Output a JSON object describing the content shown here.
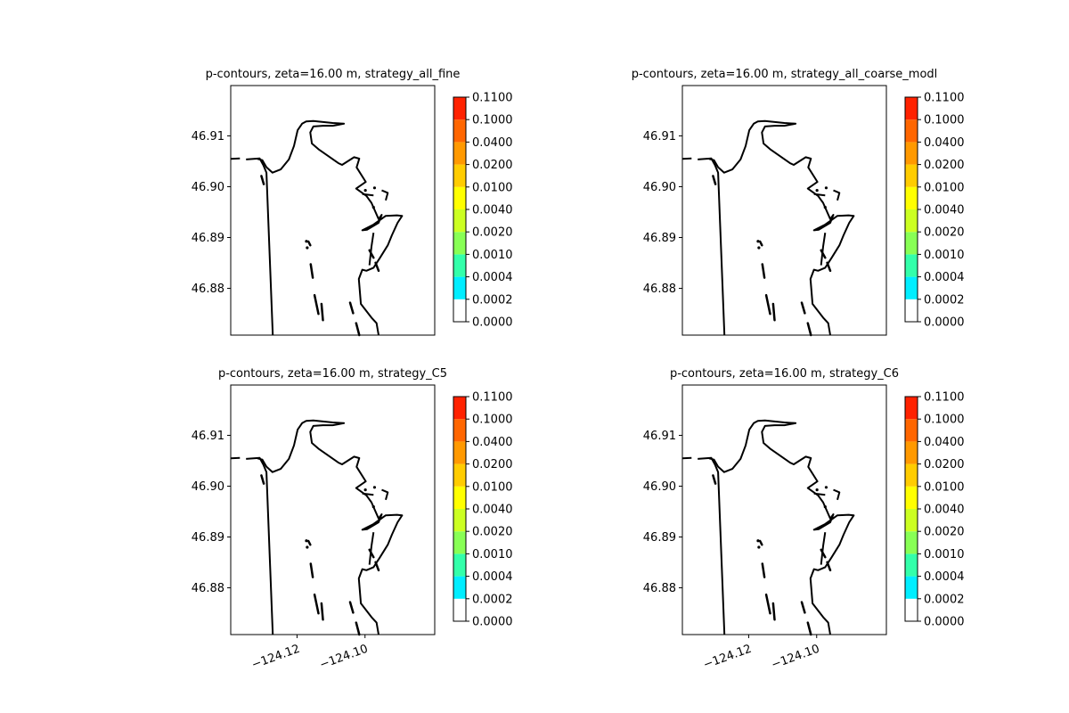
{
  "chart_data": {
    "type": "contour",
    "panels": [
      {
        "title": "p-contours, zeta=16.00 m, strategy_all_fine"
      },
      {
        "title": "p-contours, zeta=16.00 m, strategy_all_coarse_modl"
      },
      {
        "title": "p-contours, zeta=16.00 m, strategy_C5"
      },
      {
        "title": "p-contours, zeta=16.00 m, strategy_C6"
      }
    ],
    "yticks": [
      "46.91",
      "46.90",
      "46.89",
      "46.88"
    ],
    "ytick_values": [
      46.91,
      46.9,
      46.89,
      46.88
    ],
    "xticks": [
      "−124.12",
      "−124.10"
    ],
    "xtick_values": [
      -124.12,
      -124.1
    ],
    "xtick_rotation_deg": 20,
    "ylim": [
      46.8708,
      46.9199
    ],
    "xlim": [
      -124.1395,
      -124.0795
    ],
    "xticks_shown_on": "bottom row only",
    "colorbar": {
      "levels": [
        "0.0000",
        "0.0002",
        "0.0004",
        "0.0010",
        "0.0020",
        "0.0040",
        "0.0100",
        "0.0200",
        "0.0400",
        "0.1000",
        "0.1100"
      ],
      "colors": [
        "#ffffff",
        "#00eeff",
        "#33ffaa",
        "#88ff55",
        "#ccff22",
        "#ffff00",
        "#ffcc00",
        "#ff9900",
        "#ff6600",
        "#ff2200",
        "#ee0000"
      ]
    },
    "series_color": "#000000"
  }
}
